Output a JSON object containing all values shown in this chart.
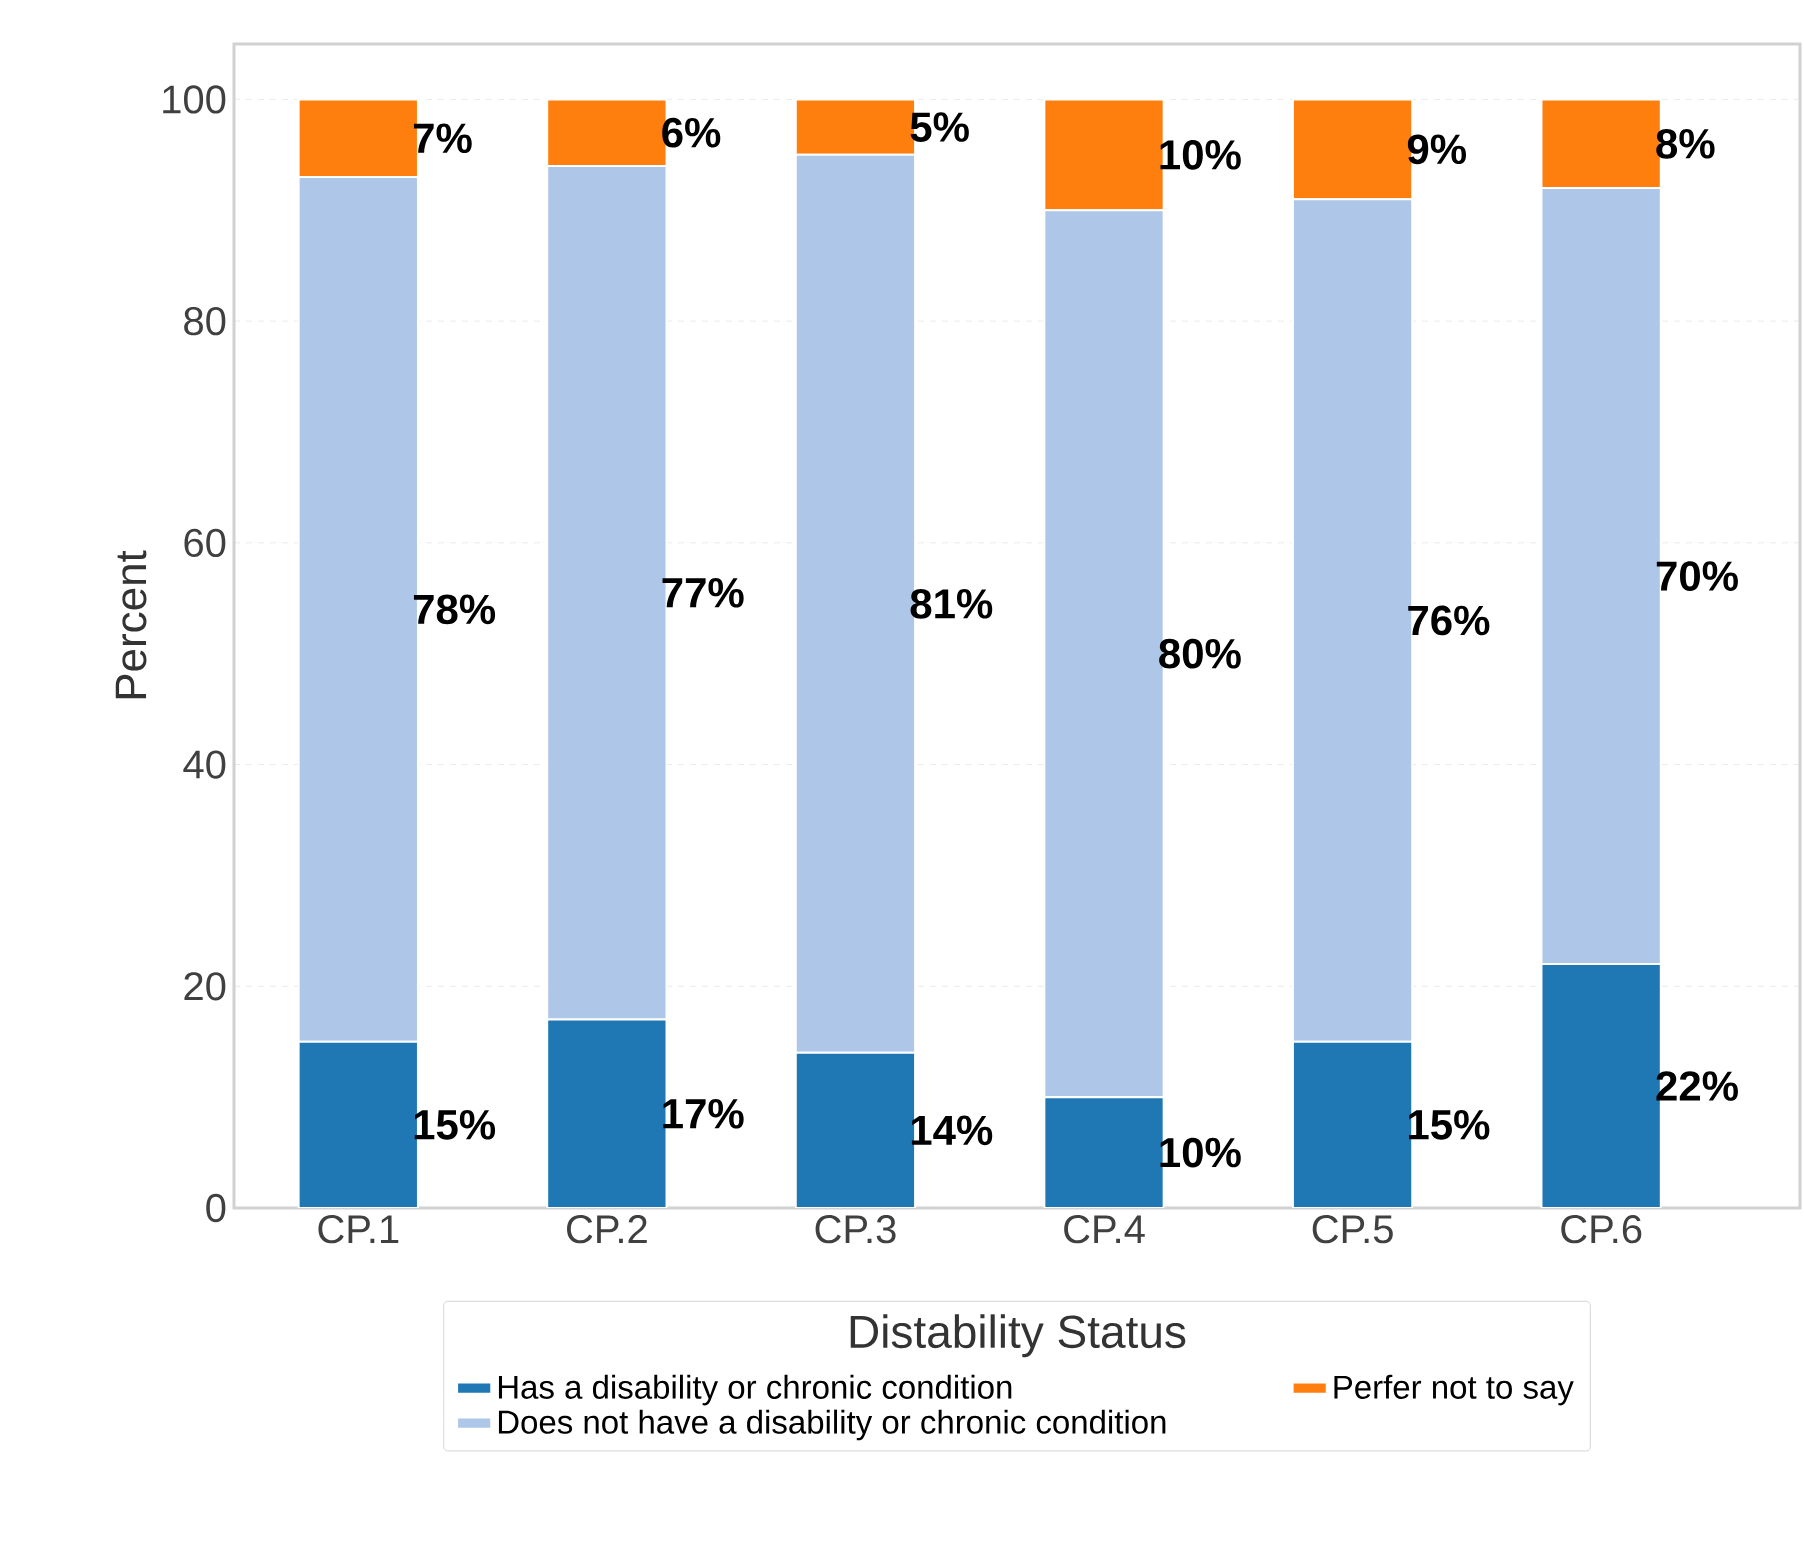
{
  "chart_data": {
    "type": "bar",
    "stacked": true,
    "categories": [
      "CP.1",
      "CP.2",
      "CP.3",
      "CP.4",
      "CP.5",
      "CP.6"
    ],
    "series": [
      {
        "name": "Has a disability or chronic condition",
        "color": "#1f77b4",
        "values": [
          15,
          17,
          14,
          10,
          15,
          22
        ],
        "value_labels": [
          "15%",
          "17%",
          "14%",
          "10%",
          "15%",
          "22%"
        ]
      },
      {
        "name": "Does not have a disability or chronic condition",
        "color": "#aec7e8",
        "values": [
          78,
          77,
          81,
          80,
          76,
          70
        ],
        "value_labels": [
          "78%",
          "77%",
          "81%",
          "80%",
          "76%",
          "70%"
        ]
      },
      {
        "name": "Perfer not to say",
        "color": "#ff7f0e",
        "values": [
          7,
          6,
          5,
          10,
          9,
          8
        ],
        "value_labels": [
          "7%",
          "6%",
          "5%",
          "10%",
          "9%",
          "8%"
        ]
      }
    ],
    "ylabel": "Percent",
    "legend_title": "Distability Status",
    "ylim": [
      0,
      105
    ],
    "yticks": [
      0,
      20,
      40,
      60,
      80,
      100
    ],
    "grid": "y",
    "legend": "bottom"
  }
}
